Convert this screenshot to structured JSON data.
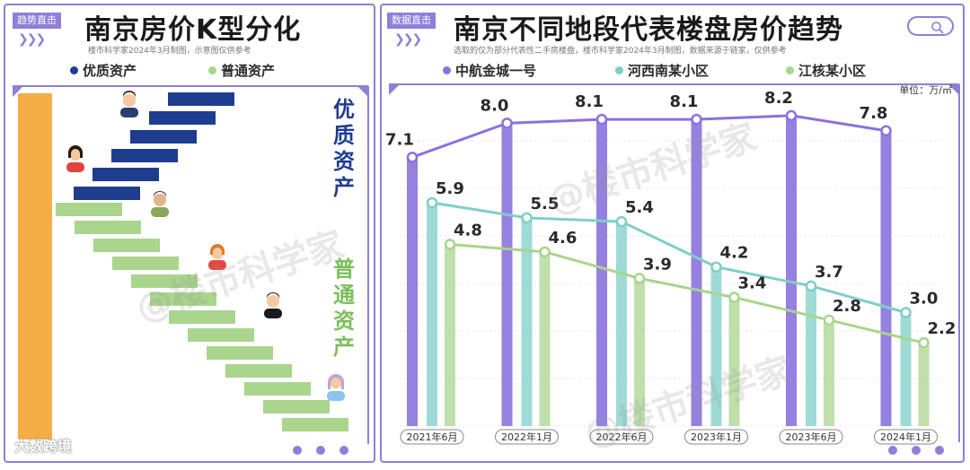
{
  "left": {
    "tag": "趋势直击",
    "title": "南京房价K型分化",
    "subtitle": "楼市科学家2024年3月制图，示意图仅供参考",
    "legend": [
      {
        "label": "优质资产",
        "color": "#1f3d8f"
      },
      {
        "label": "普通资产",
        "color": "#a9d58d"
      }
    ],
    "label_premium": "优质资产",
    "label_ordinary": "普通资产"
  },
  "right": {
    "tag": "数据直击",
    "title": "南京不同地段代表楼盘房价趋势",
    "subtitle": "选取的仅为部分代表性二手房楼盘，楼市科学家2024年3月制图，数据来源于链家，仅供参考",
    "unit": "单位：万/㎡"
  },
  "watermark": "@楼市科学家",
  "brand": "大数跨境",
  "chart_data": {
    "type": "bar+line",
    "x": [
      "2021年6月",
      "2022年1月",
      "2022年6月",
      "2023年1月",
      "2023年6月",
      "2024年1月"
    ],
    "ylabel": "单位：万/㎡",
    "ylim": [
      0,
      8.6
    ],
    "series": [
      {
        "name": "中航金城一号",
        "color": "#8b72dd",
        "values": [
          7.1,
          8.0,
          8.1,
          8.1,
          8.2,
          7.8
        ]
      },
      {
        "name": "河西南某小区",
        "color": "#7fcfc8",
        "values": [
          5.9,
          5.5,
          5.4,
          4.2,
          3.7,
          3.0
        ]
      },
      {
        "name": "江核某小区",
        "color": "#a9d58d",
        "values": [
          4.8,
          4.6,
          3.9,
          3.4,
          2.8,
          2.2
        ]
      }
    ]
  }
}
